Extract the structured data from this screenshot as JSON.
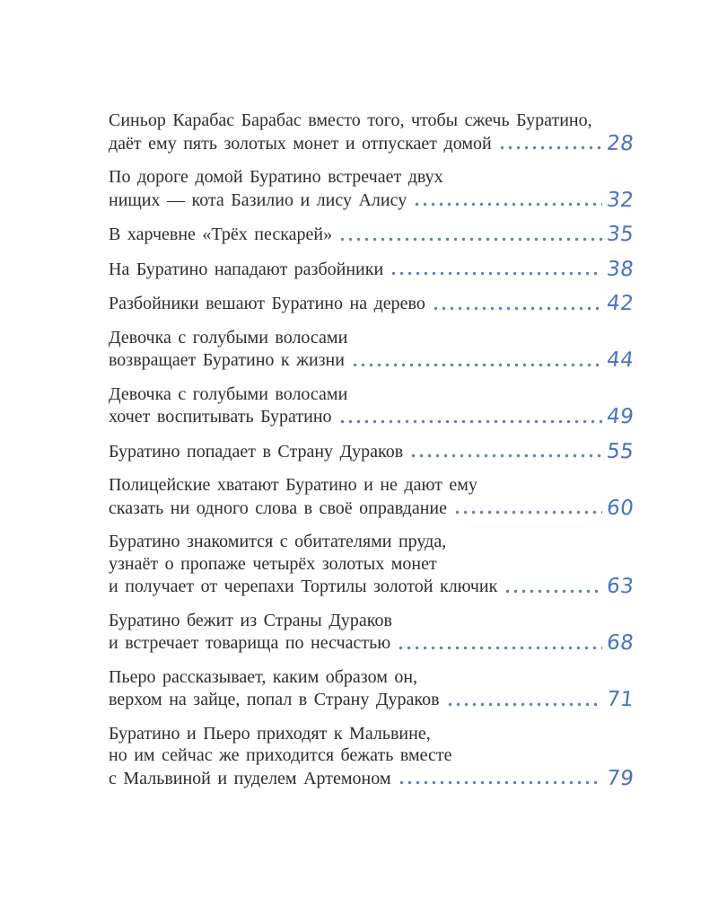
{
  "page": {
    "background_color": "#ffffff",
    "text_color": "#2e2d2b",
    "accent_blue": "#4a73c2",
    "dot_color": "#5c7fc0"
  },
  "toc": {
    "entries": [
      {
        "lines": [
          "Синьор Карабас Барабас вместо того, чтобы сжечь Буратино,",
          "даёт ему пять золотых монет и отпускает домой"
        ],
        "page": "28"
      },
      {
        "lines": [
          "По дороге домой Буратино встречает двух",
          "нищих — кота Базилио и лису Алису"
        ],
        "page": "32"
      },
      {
        "lines": [
          "В харчевне «Трёх пескарей»"
        ],
        "page": "35"
      },
      {
        "lines": [
          "На Буратино нападают разбойники"
        ],
        "page": "38"
      },
      {
        "lines": [
          "Разбойники вешают Буратино на дерево"
        ],
        "page": "42"
      },
      {
        "lines": [
          "Девочка с голубыми волосами",
          "возвращает Буратино к жизни"
        ],
        "page": "44"
      },
      {
        "lines": [
          "Девочка с голубыми волосами",
          "хочет воспитывать Буратино"
        ],
        "page": "49"
      },
      {
        "lines": [
          "Буратино попадает в Страну Дураков"
        ],
        "page": "55"
      },
      {
        "lines": [
          "Полицейские хватают Буратино и не дают ему",
          "сказать ни одного слова в своё оправдание"
        ],
        "page": "60"
      },
      {
        "lines": [
          "Буратино знакомится с обитателями пруда,",
          "узнаёт о пропаже четырёх золотых монет",
          "и получает от черепахи Тортилы золотой ключик"
        ],
        "page": "63"
      },
      {
        "lines": [
          "Буратино бежит из Страны Дураков",
          "и встречает товарища по несчастью"
        ],
        "page": "68"
      },
      {
        "lines": [
          "Пьеро рассказывает, каким образом он,",
          "верхом на зайце, попал в Страну Дураков"
        ],
        "page": "71"
      },
      {
        "lines": [
          "Буратино и Пьеро приходят к Мальвине,",
          "но им сейчас же приходится бежать вместе",
          "с Мальвиной и пуделем Артемоном"
        ],
        "page": "79"
      }
    ]
  }
}
